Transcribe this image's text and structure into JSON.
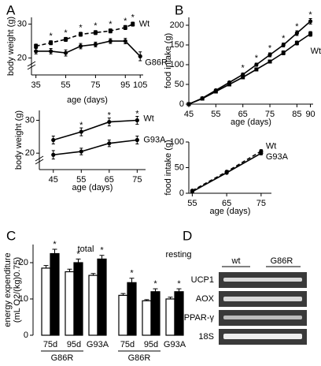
{
  "chart_data": [
    {
      "type": "line",
      "panel": "A",
      "ylabel": "body weight (g)",
      "xlabel": "age (days)",
      "xlim": [
        32,
        107
      ],
      "xticks": [
        35,
        55,
        75,
        95,
        105
      ],
      "ylim": [
        15,
        32
      ],
      "yticks": [
        20,
        30
      ],
      "axis_break": true,
      "series": [
        {
          "name": "Wt",
          "color": "#000000",
          "dashed": true,
          "marker": "square",
          "x": [
            35,
            45,
            55,
            65,
            75,
            85,
            95,
            100
          ],
          "values": [
            23.5,
            24.5,
            25.5,
            27,
            27.5,
            28,
            29,
            30
          ],
          "errors": [
            0.6,
            0.6,
            0.6,
            0.6,
            0.6,
            0.6,
            0.6,
            0.6
          ],
          "significance": [
            null,
            "*",
            "*",
            "*",
            "*",
            "*",
            "*",
            "*"
          ]
        },
        {
          "name": "G86R",
          "color": "#000000",
          "dashed": false,
          "marker": "circle",
          "x": [
            35,
            45,
            55,
            65,
            75,
            85,
            95,
            105
          ],
          "values": [
            22,
            22,
            21.5,
            23.5,
            24,
            25,
            25,
            20.5
          ],
          "errors": [
            0.8,
            0.8,
            0.9,
            0.8,
            0.7,
            0.7,
            0.8,
            1.3
          ]
        }
      ]
    },
    {
      "type": "line",
      "panel": null,
      "ylabel": "body weight (g)",
      "xlabel": "age (days)",
      "xlim": [
        40,
        78
      ],
      "xticks": [
        45,
        55,
        65,
        75
      ],
      "ylim": [
        15,
        33
      ],
      "yticks": [
        20,
        30
      ],
      "axis_break": true,
      "series": [
        {
          "name": "Wt",
          "color": "#000000",
          "dashed": false,
          "marker": "circle",
          "x": [
            45,
            55,
            65,
            75
          ],
          "values": [
            24,
            26.5,
            29.5,
            30
          ],
          "errors": [
            1.2,
            1.2,
            1.2,
            1.2
          ],
          "significance": [
            null,
            "*",
            "*",
            "*"
          ]
        },
        {
          "name": "G93A",
          "color": "#000000",
          "dashed": false,
          "marker": "circle",
          "x": [
            45,
            55,
            65,
            75
          ],
          "values": [
            19.5,
            20.5,
            23,
            24
          ],
          "errors": [
            1.3,
            1.0,
            1.0,
            1.2
          ]
        }
      ]
    },
    {
      "type": "line",
      "panel": "B",
      "ylabel": "food intake (g)",
      "xlabel": "age (days)",
      "xlim": [
        45,
        91
      ],
      "xticks": [
        45,
        55,
        65,
        75,
        85,
        90
      ],
      "ylim": [
        0,
        220
      ],
      "yticks": [
        0,
        50,
        100,
        150,
        200
      ],
      "axis_break": false,
      "series": [
        {
          "name": "G86R",
          "color": "#000000",
          "dashed": false,
          "marker": "circle",
          "x": [
            45,
            50,
            55,
            60,
            65,
            70,
            75,
            80,
            85,
            90
          ],
          "values": [
            0,
            15,
            35,
            55,
            75,
            100,
            125,
            150,
            180,
            210
          ],
          "errors": [
            2,
            2,
            3,
            3,
            4,
            4,
            5,
            5,
            6,
            7
          ],
          "significance": [
            null,
            null,
            null,
            null,
            "*",
            "*",
            "*",
            "*",
            "*",
            "*"
          ]
        },
        {
          "name": "Wt",
          "color": "#000000",
          "dashed": false,
          "marker": "square",
          "x": [
            45,
            50,
            55,
            60,
            65,
            70,
            75,
            80,
            85,
            90
          ],
          "values": [
            0,
            14,
            32,
            50,
            68,
            88,
            108,
            130,
            155,
            178
          ],
          "errors": [
            2,
            2,
            3,
            3,
            3,
            4,
            4,
            5,
            5,
            6
          ]
        }
      ]
    },
    {
      "type": "line",
      "panel": null,
      "ylabel": "food intake (g)",
      "xlabel": "age (days)",
      "xlim": [
        54,
        78
      ],
      "xticks": [
        55,
        65,
        75
      ],
      "ylim": [
        0,
        100
      ],
      "yticks": [
        0,
        50,
        100
      ],
      "axis_break": false,
      "series": [
        {
          "name": "Wt",
          "color": "#000000",
          "dashed": true,
          "marker": "circle",
          "x": [
            55,
            65,
            75
          ],
          "values": [
            5,
            42,
            82
          ],
          "errors": [
            2,
            2,
            3
          ]
        },
        {
          "name": "G93A",
          "color": "#000000",
          "dashed": false,
          "marker": "circle",
          "x": [
            55,
            65,
            75
          ],
          "values": [
            3,
            40,
            78
          ],
          "errors": [
            2,
            2,
            3
          ]
        }
      ]
    },
    {
      "type": "bar",
      "panel": "C",
      "ylabel": "energy expenditure",
      "ylabel2": "(mL O2/(kg)0.75)",
      "ylim": [
        0,
        25
      ],
      "yticks": [
        0,
        10,
        20
      ],
      "group_labels": [
        "total",
        "resting"
      ],
      "strain_labels": [
        "G86R",
        "G86R"
      ],
      "categories": [
        "75d",
        "95d",
        "G93A",
        "75d",
        "95d",
        "G93A"
      ],
      "series": [
        {
          "color": "#ffffff",
          "values": [
            18.5,
            17.5,
            16.5,
            11,
            9.5,
            10
          ],
          "errors": [
            0.7,
            0.7,
            0.5,
            0.5,
            0.3,
            0.5
          ]
        },
        {
          "color": "#000000",
          "values": [
            22.5,
            20,
            21,
            14.5,
            12,
            12
          ],
          "errors": [
            1.2,
            1.0,
            1.0,
            1.2,
            0.8,
            0.8
          ],
          "significance": [
            "*",
            "*",
            "*",
            "*",
            "*",
            "*"
          ]
        }
      ]
    }
  ],
  "gel": {
    "panel": "D",
    "lanes": [
      "wt",
      "G86R"
    ],
    "rows": [
      "UCP1",
      "AOX",
      "PPAR-γ",
      "18S"
    ]
  }
}
